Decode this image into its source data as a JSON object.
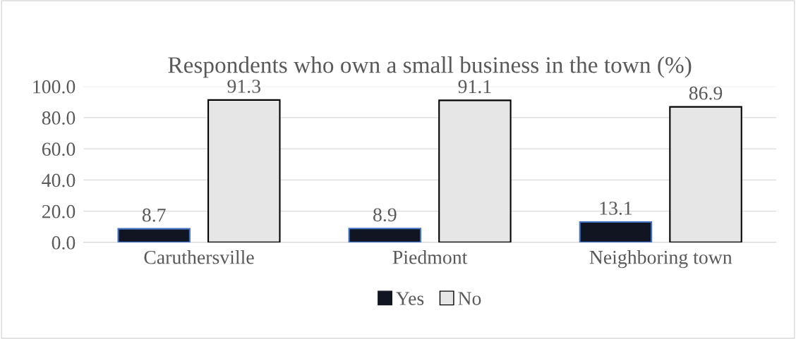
{
  "chart_data": {
    "type": "bar",
    "title": "Respondents who own a small business in the town (%)",
    "categories": [
      "Caruthersville",
      "Piedmont",
      "Neighboring town"
    ],
    "series": [
      {
        "name": "Yes",
        "color": "#111522",
        "values": [
          8.7,
          8.9,
          13.1
        ]
      },
      {
        "name": "No",
        "color": "#e6e6e6",
        "values": [
          91.3,
          91.1,
          86.9
        ]
      }
    ],
    "ylim": [
      0,
      100
    ],
    "yticks": [
      {
        "value": 0,
        "label": "0.0"
      },
      {
        "value": 20,
        "label": "20.0"
      },
      {
        "value": 40,
        "label": "40.0"
      },
      {
        "value": 60,
        "label": "60.0"
      },
      {
        "value": 80,
        "label": "80.0"
      },
      {
        "value": 100,
        "label": "100.0"
      }
    ],
    "grid": "y",
    "legend": "bottom",
    "data_labels": true
  }
}
